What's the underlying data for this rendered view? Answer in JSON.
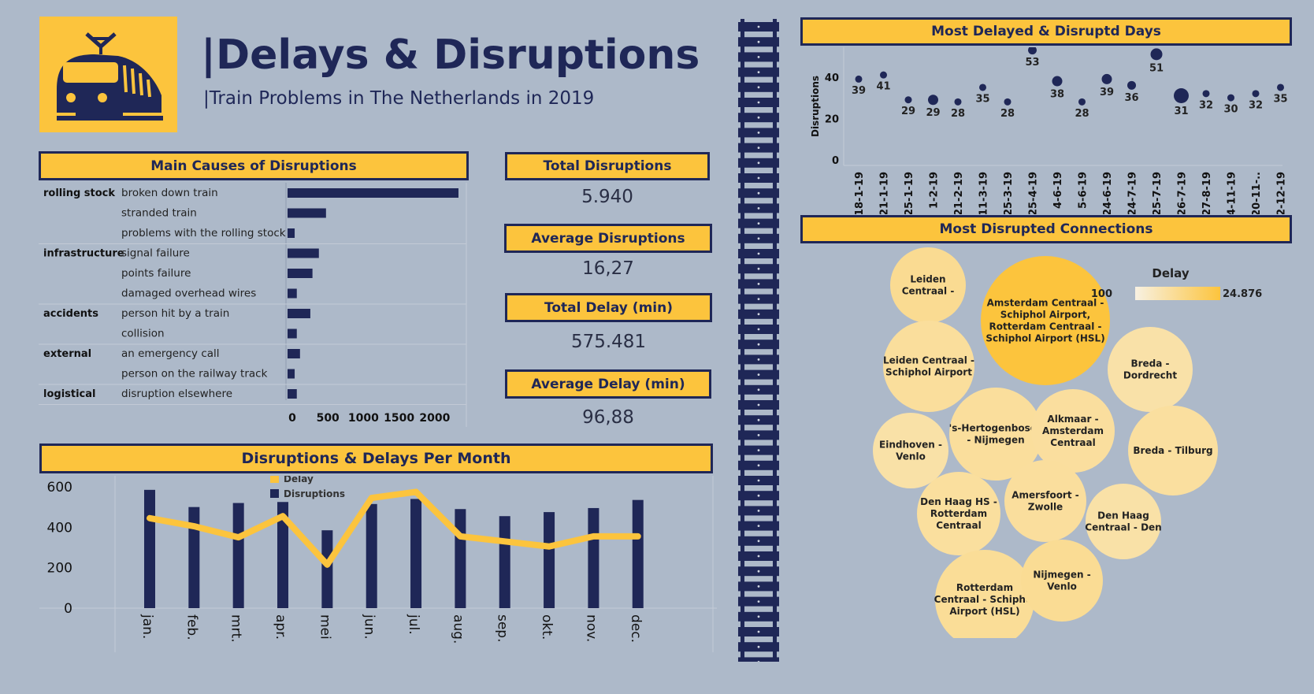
{
  "header": {
    "title": "|Delays & Disruptions",
    "subtitle": "|Train Problems in The Netherlands in 2019"
  },
  "colors": {
    "navy": "#1f2757",
    "yellow": "#fcc43d",
    "background": "#adb9c9"
  },
  "icons": {
    "logo": "train-icon"
  },
  "causes": {
    "title": "Main Causes of Disruptions",
    "axis_ticks": [
      "0",
      "500",
      "1000",
      "1500",
      "2000"
    ],
    "groups": [
      {
        "name": "rolling stock",
        "items": [
          {
            "label": "broken down train",
            "value": 2400
          },
          {
            "label": "stranded train",
            "value": 540
          },
          {
            "label": "problems with the rolling stock",
            "value": 100
          }
        ]
      },
      {
        "name": "infrastructure",
        "items": [
          {
            "label": "signal failure",
            "value": 440
          },
          {
            "label": "points failure",
            "value": 350
          },
          {
            "label": "damaged overhead wires",
            "value": 130
          }
        ]
      },
      {
        "name": "accidents",
        "items": [
          {
            "label": "person hit by a train",
            "value": 320
          },
          {
            "label": "collision",
            "value": 130
          }
        ]
      },
      {
        "name": "external",
        "items": [
          {
            "label": "an emergency call",
            "value": 175
          },
          {
            "label": "person on the railway track",
            "value": 100
          }
        ]
      },
      {
        "name": "logistical",
        "items": [
          {
            "label": "disruption elsewhere",
            "value": 130
          }
        ]
      }
    ]
  },
  "kpis": [
    {
      "label": "Total Disruptions",
      "value": "5.940"
    },
    {
      "label": "Average Disruptions",
      "value": "16,27"
    },
    {
      "label": "Total Delay (min)",
      "value": "575.481"
    },
    {
      "label": "Average Delay (min)",
      "value": "96,88"
    }
  ],
  "monthly": {
    "title": "Disruptions & Delays Per Month",
    "legend": [
      "Delay",
      "Disruptions"
    ],
    "y_ticks": [
      "600",
      "400",
      "200",
      "0"
    ]
  },
  "days": {
    "title": "Most Delayed & Disruptd Days",
    "ylabel": "Disruptions",
    "y_ticks": [
      "40",
      "20",
      "0"
    ]
  },
  "connections": {
    "title": "Most Disrupted Connections",
    "legend_title": "Delay",
    "legend_min": "100",
    "legend_max": "24.876",
    "bubbles": [
      {
        "label": "Amsterdam Centraal - Schiphol Airport, Rotterdam Centraal - Schiphol Airport (HSL)",
        "delay": 24876
      },
      {
        "label": "Leiden Centraal -",
        "delay": 5000
      },
      {
        "label": "Leiden Centraal - Schiphol Airport",
        "delay": 3800
      },
      {
        "label": "Breda - Dordrecht",
        "delay": 2500
      },
      {
        "label": "'s-Hertogenbosch - Nijmegen",
        "delay": 3800
      },
      {
        "label": "Alkmaar - Amsterdam Centraal",
        "delay": 3600
      },
      {
        "label": "Breda - Tilburg",
        "delay": 3400
      },
      {
        "label": "Eindhoven - Venlo",
        "delay": 2600
      },
      {
        "label": "Den Haag HS - Rotterdam Centraal",
        "delay": 3500
      },
      {
        "label": "Amersfoort - Zwolle",
        "delay": 3700
      },
      {
        "label": "Den Haag Centraal - Den",
        "delay": 2600
      },
      {
        "label": "Rotterdam Centraal - Schiphol Airport (HSL)",
        "delay": 4400
      },
      {
        "label": "Nijmegen - Venlo",
        "delay": 4800
      }
    ]
  },
  "chart_data": [
    {
      "type": "bar",
      "title": "Main Causes of Disruptions",
      "orientation": "horizontal",
      "categories": [
        "broken down train",
        "stranded train",
        "problems with the rolling stock",
        "signal failure",
        "points failure",
        "damaged overhead wires",
        "person hit by a train",
        "collision",
        "an emergency call",
        "person on the railway track",
        "disruption elsewhere"
      ],
      "values": [
        2400,
        540,
        100,
        440,
        350,
        130,
        320,
        130,
        175,
        100,
        130
      ],
      "xlim": [
        0,
        2450
      ]
    },
    {
      "type": "bar",
      "title": "Disruptions & Delays Per Month",
      "categories": [
        "jan.",
        "feb.",
        "mrt.",
        "apr.",
        "mei",
        "jun.",
        "jul.",
        "aug.",
        "sep.",
        "okt.",
        "nov.",
        "dec."
      ],
      "series": [
        {
          "name": "Disruptions",
          "type": "bar",
          "values": [
            585,
            500,
            520,
            525,
            385,
            515,
            540,
            490,
            455,
            475,
            495,
            535
          ]
        },
        {
          "name": "Delay",
          "type": "line",
          "values": [
            445,
            405,
            350,
            455,
            215,
            545,
            575,
            355,
            330,
            305,
            355,
            355
          ]
        }
      ],
      "ylim": [
        0,
        620
      ]
    },
    {
      "type": "scatter",
      "title": "Most Delayed & Disruptd Days",
      "ylabel": "Disruptions",
      "x": [
        "18-1-19",
        "21-1-19",
        "25-1-19",
        "1-2-19",
        "21-2-19",
        "11-3-19",
        "25-3-19",
        "25-4-19",
        "4-6-19",
        "5-6-19",
        "24-6-19",
        "24-7-19",
        "25-7-19",
        "26-7-19",
        "27-8-19",
        "4-11-19",
        "20-11-..",
        "2-12-19"
      ],
      "y": [
        39,
        41,
        29,
        29,
        28,
        35,
        28,
        53,
        38,
        28,
        39,
        36,
        51,
        31,
        32,
        30,
        32,
        35
      ],
      "size": [
        3,
        3,
        3,
        5,
        3,
        3,
        3,
        4,
        5,
        3,
        5,
        4,
        6,
        8,
        3,
        3,
        3,
        3
      ],
      "ylim": [
        0,
        58
      ]
    }
  ]
}
